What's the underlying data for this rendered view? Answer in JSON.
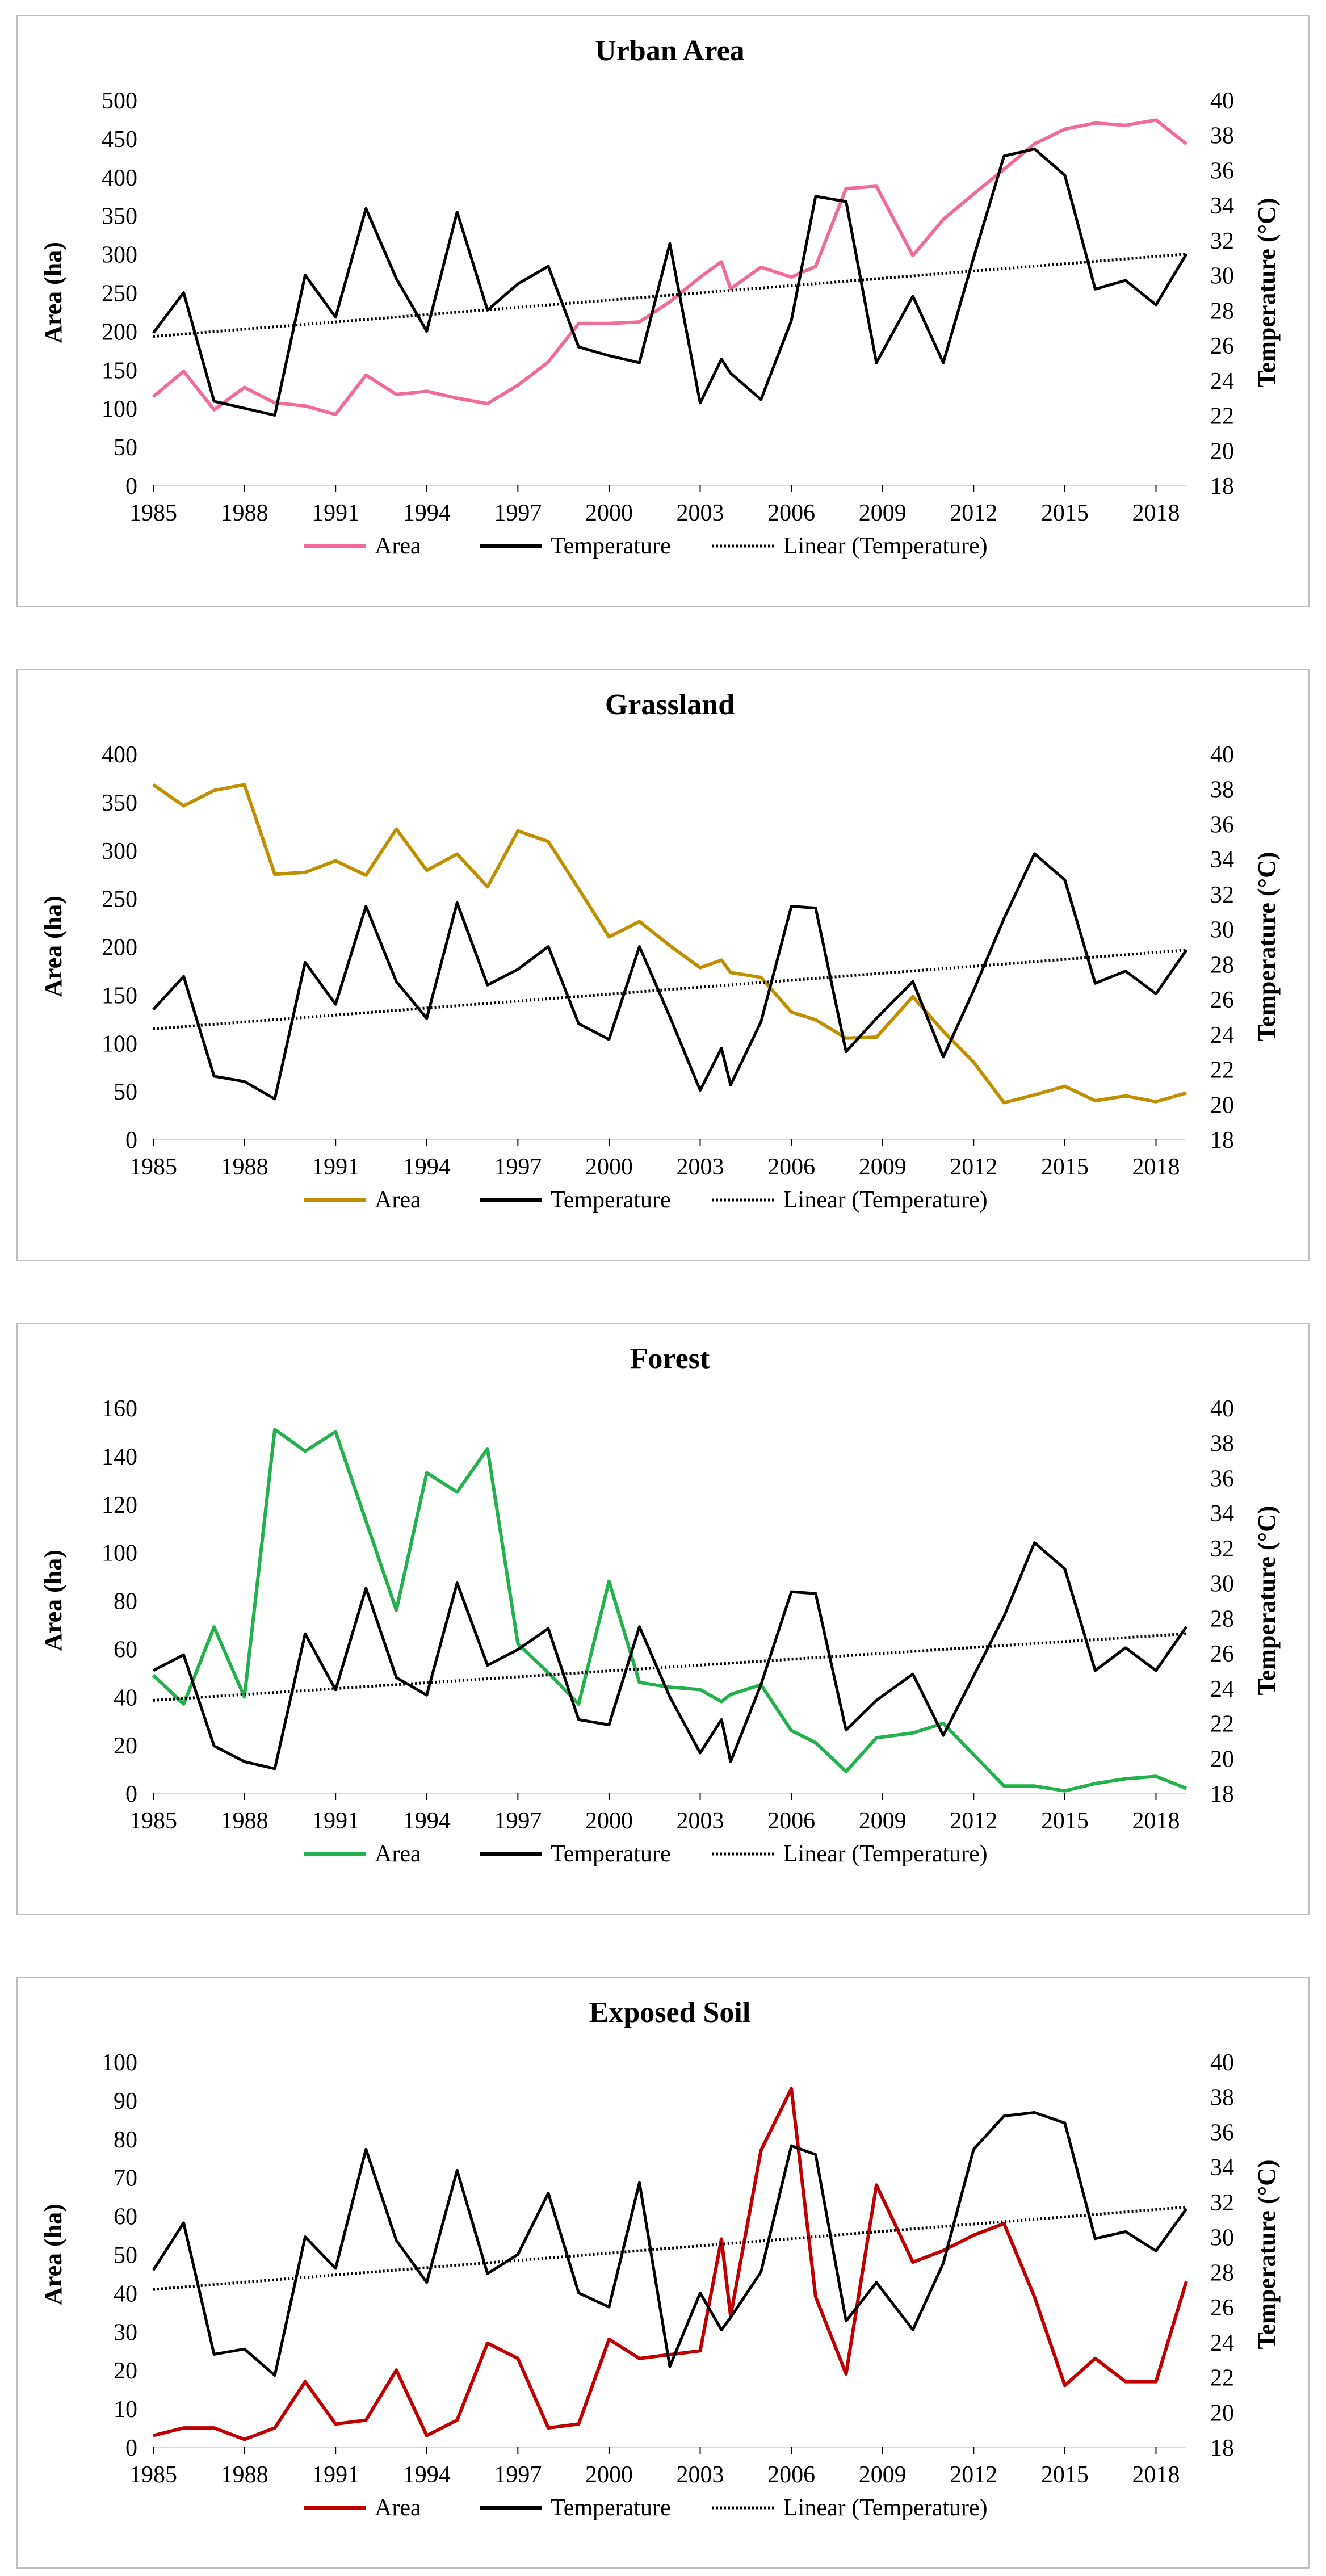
{
  "chart_data": [
    {
      "type": "line",
      "title": "Urban Area",
      "xlabel": "",
      "ylabel": "Area (ha)",
      "y2label": "Temperature (°C)",
      "xlim": [
        1985,
        2019
      ],
      "ylim": [
        0,
        500
      ],
      "y_ticks": [
        "0",
        "50",
        "100",
        "150",
        "200",
        "250",
        "300",
        "350",
        "400",
        "450",
        "500"
      ],
      "y2lim": [
        18,
        40
      ],
      "y2_ticks": [
        "18",
        "20",
        "22",
        "24",
        "26",
        "28",
        "30",
        "32",
        "34",
        "36",
        "38",
        "40"
      ],
      "x_ticks": [
        "1985",
        "1988",
        "1991",
        "1994",
        "1997",
        "2000",
        "2003",
        "2006",
        "2009",
        "2012",
        "2015",
        "2018"
      ],
      "legend": [
        "Area",
        "Temperature",
        "Linear (Temperature)"
      ],
      "legend_position": "bottom",
      "grid": false,
      "colors": {
        "area": "#f06a9b",
        "temperature": "#000000",
        "trend": "#000000"
      },
      "series": [
        {
          "name": "Area",
          "axis": "left",
          "x": [
            1985,
            1986,
            1987,
            1988,
            1989,
            1990,
            1991,
            1992,
            1993,
            1994,
            1995,
            1996,
            1997,
            1998,
            1999,
            2000,
            2001,
            2002,
            2003,
            2003.7,
            2004,
            2005,
            2006,
            2006.8,
            2007.8,
            2008.8,
            2010,
            2011,
            2012,
            2013,
            2014,
            2015,
            2016,
            2017,
            2018,
            2019
          ],
          "y": [
            115,
            148,
            98,
            127,
            107,
            103,
            92,
            143,
            118,
            122,
            113,
            106,
            130,
            160,
            210,
            210,
            212,
            238,
            270,
            290,
            255,
            283,
            270,
            284,
            385,
            388,
            298,
            345,
            378,
            410,
            443,
            462,
            470,
            467,
            474,
            443
          ]
        },
        {
          "name": "Temperature",
          "axis": "right",
          "x": [
            1985,
            1986,
            1987,
            1988,
            1989,
            1990,
            1991,
            1992,
            1993,
            1994,
            1995,
            1996,
            1997,
            1998,
            1999,
            2000,
            2001,
            2002,
            2003,
            2003.7,
            2004,
            2005,
            2006,
            2006.8,
            2007.8,
            2008.8,
            2010,
            2011,
            2012,
            2013,
            2014,
            2015,
            2016,
            2017,
            2018,
            2019
          ],
          "y": [
            26.7,
            29.0,
            22.8,
            22.4,
            22.0,
            30.0,
            27.6,
            33.8,
            29.8,
            26.8,
            33.6,
            28.0,
            29.5,
            30.5,
            25.9,
            25.4,
            25.0,
            31.8,
            22.7,
            25.2,
            24.4,
            22.9,
            27.4,
            34.5,
            34.2,
            25.0,
            28.8,
            25.0,
            31.0,
            36.8,
            37.2,
            35.7,
            29.2,
            29.7,
            28.3,
            31.2
          ]
        },
        {
          "name": "Linear (Temperature)",
          "axis": "right",
          "style": "dotted",
          "x": [
            1985,
            2019
          ],
          "y": [
            26.5,
            31.2
          ]
        }
      ]
    },
    {
      "type": "line",
      "title": "Grassland",
      "xlabel": "",
      "ylabel": "Area (ha)",
      "y2label": "Temperature (°C)",
      "xlim": [
        1985,
        2019
      ],
      "ylim": [
        0,
        400
      ],
      "y_ticks": [
        "0",
        "50",
        "100",
        "150",
        "200",
        "250",
        "300",
        "350",
        "400"
      ],
      "y2lim": [
        18,
        40
      ],
      "y2_ticks": [
        "18",
        "20",
        "22",
        "24",
        "26",
        "28",
        "30",
        "32",
        "34",
        "36",
        "38",
        "40"
      ],
      "x_ticks": [
        "1985",
        "1988",
        "1991",
        "1994",
        "1997",
        "2000",
        "2003",
        "2006",
        "2009",
        "2012",
        "2015",
        "2018"
      ],
      "legend": [
        "Area",
        "Temperature",
        "Linear (Temperature)"
      ],
      "legend_position": "bottom",
      "grid": false,
      "colors": {
        "area": "#bf8f00",
        "temperature": "#000000",
        "trend": "#000000"
      },
      "series": [
        {
          "name": "Area",
          "axis": "left",
          "x": [
            1985,
            1986,
            1987,
            1988,
            1989,
            1990,
            1991,
            1992,
            1993,
            1994,
            1995,
            1996,
            1997,
            1998,
            1999,
            2000,
            2001,
            2002,
            2003,
            2003.7,
            2004,
            2005,
            2006,
            2006.8,
            2007.8,
            2008.8,
            2010,
            2011,
            2012,
            2013,
            2014,
            2015,
            2016,
            2017,
            2018,
            2019
          ],
          "y": [
            368,
            346,
            362,
            368,
            275,
            277,
            289,
            274,
            322,
            279,
            296,
            262,
            320,
            309,
            260,
            210,
            226,
            201,
            178,
            186,
            173,
            168,
            132,
            124,
            105,
            106,
            148,
            112,
            80,
            38,
            46,
            55,
            40,
            45,
            39,
            48
          ]
        },
        {
          "name": "Temperature",
          "axis": "right",
          "x": [
            1985,
            1986,
            1987,
            1988,
            1989,
            1990,
            1991,
            1992,
            1993,
            1994,
            1995,
            1996,
            1997,
            1998,
            1999,
            2000,
            2001,
            2002,
            2003,
            2003.7,
            2004,
            2005,
            2006,
            2006.8,
            2007.8,
            2008.8,
            2010,
            2011,
            2012,
            2013,
            2014,
            2015,
            2016,
            2017,
            2018,
            2019
          ],
          "y": [
            25.4,
            27.3,
            21.6,
            21.3,
            20.3,
            28.1,
            25.7,
            31.3,
            27.0,
            24.9,
            31.5,
            26.8,
            27.7,
            29.0,
            24.6,
            23.7,
            29.0,
            25.0,
            20.8,
            23.2,
            21.1,
            24.7,
            31.3,
            31.2,
            23.0,
            24.9,
            27.0,
            22.7,
            26.5,
            30.6,
            34.3,
            32.8,
            26.9,
            27.6,
            26.3,
            28.8
          ]
        },
        {
          "name": "Linear (Temperature)",
          "axis": "right",
          "style": "dotted",
          "x": [
            1985,
            2019
          ],
          "y": [
            24.3,
            28.8
          ]
        }
      ]
    },
    {
      "type": "line",
      "title": "Forest",
      "xlabel": "",
      "ylabel": "Area (ha)",
      "y2label": "Temperature (°C)",
      "xlim": [
        1985,
        2019
      ],
      "ylim": [
        0,
        160
      ],
      "y_ticks": [
        "0",
        "20",
        "40",
        "60",
        "80",
        "100",
        "120",
        "140",
        "160"
      ],
      "y2lim": [
        18,
        40
      ],
      "y2_ticks": [
        "18",
        "20",
        "22",
        "24",
        "26",
        "28",
        "30",
        "32",
        "34",
        "36",
        "38",
        "40"
      ],
      "x_ticks": [
        "1985",
        "1988",
        "1991",
        "1994",
        "1997",
        "2000",
        "2003",
        "2006",
        "2009",
        "2012",
        "2015",
        "2018"
      ],
      "legend": [
        "Area",
        "Temperature",
        "Linear (Temperature)"
      ],
      "legend_position": "bottom",
      "grid": false,
      "colors": {
        "area": "#22b14c",
        "temperature": "#000000",
        "trend": "#000000"
      },
      "series": [
        {
          "name": "Area",
          "axis": "left",
          "x": [
            1985,
            1986,
            1987,
            1988,
            1989,
            1990,
            1991,
            1992,
            1993,
            1994,
            1995,
            1996,
            1997,
            1998,
            1999,
            2000,
            2001,
            2002,
            2003,
            2003.7,
            2004,
            2005,
            2006,
            2006.8,
            2007.8,
            2008.8,
            2010,
            2011,
            2012,
            2013,
            2014,
            2015,
            2016,
            2017,
            2018,
            2019
          ],
          "y": [
            49,
            37,
            69,
            40,
            151,
            142,
            150,
            113,
            76,
            133,
            125,
            143,
            62,
            50,
            37,
            88,
            46,
            44,
            43,
            38,
            41,
            45,
            26,
            21,
            9,
            23,
            25,
            29,
            16,
            3,
            3,
            1,
            4,
            6,
            7,
            2
          ]
        },
        {
          "name": "Temperature",
          "axis": "right",
          "x": [
            1985,
            1986,
            1987,
            1988,
            1989,
            1990,
            1991,
            1992,
            1993,
            1994,
            1995,
            1996,
            1997,
            1998,
            1999,
            2000,
            2001,
            2002,
            2003,
            2003.7,
            2004,
            2005,
            2006,
            2006.8,
            2007.8,
            2008.8,
            2010,
            2011,
            2012,
            2013,
            2014,
            2015,
            2016,
            2017,
            2018,
            2019
          ],
          "y": [
            25.0,
            25.9,
            20.7,
            19.8,
            19.4,
            27.1,
            23.9,
            29.7,
            24.6,
            23.6,
            30.0,
            25.3,
            26.2,
            27.4,
            22.2,
            21.9,
            27.5,
            23.5,
            20.3,
            22.2,
            19.8,
            24.2,
            29.5,
            29.4,
            21.6,
            23.3,
            24.8,
            21.3,
            24.7,
            28.1,
            32.3,
            30.8,
            25.0,
            26.3,
            25.0,
            27.5
          ]
        },
        {
          "name": "Linear (Temperature)",
          "axis": "right",
          "style": "dotted",
          "x": [
            1985,
            2019
          ],
          "y": [
            23.3,
            27.1
          ]
        }
      ]
    },
    {
      "type": "line",
      "title": "Exposed Soil",
      "xlabel": "",
      "ylabel": "Area (ha)",
      "y2label": "Temperature (°C)",
      "xlim": [
        1985,
        2019
      ],
      "ylim": [
        0,
        100
      ],
      "y_ticks": [
        "0",
        "10",
        "20",
        "30",
        "40",
        "50",
        "60",
        "70",
        "80",
        "90",
        "100"
      ],
      "y2lim": [
        18,
        40
      ],
      "y2_ticks": [
        "18",
        "20",
        "22",
        "24",
        "26",
        "28",
        "30",
        "32",
        "34",
        "36",
        "38",
        "40"
      ],
      "x_ticks": [
        "1985",
        "1988",
        "1991",
        "1994",
        "1997",
        "2000",
        "2003",
        "2006",
        "2009",
        "2012",
        "2015",
        "2018"
      ],
      "legend": [
        "Area",
        "Temperature",
        "Linear (Temperature)"
      ],
      "legend_position": "bottom",
      "grid": false,
      "colors": {
        "area": "#c00000",
        "temperature": "#000000",
        "trend": "#000000"
      },
      "series": [
        {
          "name": "Area",
          "axis": "left",
          "x": [
            1985,
            1986,
            1987,
            1988,
            1989,
            1990,
            1991,
            1992,
            1993,
            1994,
            1995,
            1996,
            1997,
            1998,
            1999,
            2000,
            2001,
            2002,
            2003,
            2003.7,
            2004,
            2005,
            2006,
            2006.8,
            2007.8,
            2008.8,
            2010,
            2011,
            2012,
            2013,
            2014,
            2015,
            2016,
            2017,
            2018,
            2019
          ],
          "y": [
            3,
            5,
            5,
            2,
            5,
            17,
            6,
            7,
            20,
            3,
            7,
            27,
            23,
            5,
            6,
            28,
            23,
            24,
            25,
            54,
            34,
            77,
            93,
            39,
            19,
            68,
            48,
            51,
            55,
            58,
            39,
            16,
            23,
            17,
            17,
            43
          ]
        },
        {
          "name": "Temperature",
          "axis": "right",
          "x": [
            1985,
            1986,
            1987,
            1988,
            1989,
            1990,
            1991,
            1992,
            1993,
            1994,
            1995,
            1996,
            1997,
            1998,
            1999,
            2000,
            2001,
            2002,
            2003,
            2003.7,
            2004,
            2005,
            2006,
            2006.8,
            2007.8,
            2008.8,
            2010,
            2011,
            2012,
            2013,
            2014,
            2015,
            2016,
            2017,
            2018,
            2019
          ],
          "y": [
            28.1,
            30.8,
            23.3,
            23.6,
            22.1,
            30.0,
            28.2,
            35.0,
            29.8,
            27.4,
            33.8,
            27.9,
            29.0,
            32.5,
            26.8,
            26.0,
            33.1,
            22.6,
            26.8,
            24.7,
            25.4,
            28.0,
            35.2,
            34.7,
            25.2,
            27.4,
            24.7,
            28.5,
            35.0,
            36.9,
            37.1,
            36.5,
            29.9,
            30.3,
            29.2,
            31.6
          ]
        },
        {
          "name": "Linear (Temperature)",
          "axis": "right",
          "style": "dotted",
          "x": [
            1985,
            2019
          ],
          "y": [
            27.0,
            31.7
          ]
        }
      ]
    }
  ]
}
